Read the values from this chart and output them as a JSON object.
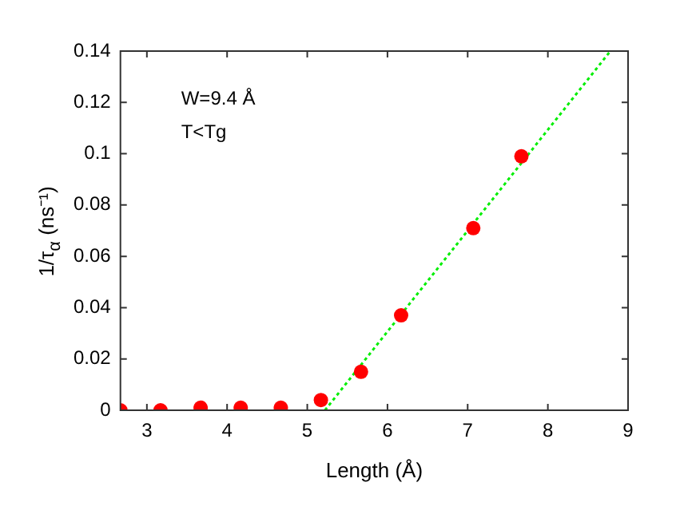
{
  "chart_data": {
    "type": "scatter",
    "xlabel": "Length (Å)",
    "ylabel": "1/τ$_{α}$ (ns⁻¹)",
    "xlim": [
      2.67,
      9
    ],
    "xticks": [
      3,
      4,
      5,
      6,
      7,
      8,
      9
    ],
    "ylim": [
      0,
      0.14
    ],
    "yticks": [
      0,
      0.02,
      0.04,
      0.06,
      0.08,
      0.1,
      0.12,
      0.14
    ],
    "grid": false,
    "legend": false,
    "marker": "circle",
    "annotations": [
      "W=9.4 Å",
      "T<Tg"
    ],
    "series": [
      {
        "color": "#ff0000",
        "x": [
          2.67,
          3.17,
          3.67,
          4.17,
          4.67,
          5.17,
          5.67,
          6.17,
          7.07,
          7.67
        ],
        "values": [
          0,
          0,
          0.001,
          0.001,
          0.001,
          0.004,
          0.015,
          0.037,
          0.071,
          0.099
        ]
      },
      {
        "type": "line",
        "color": "#00ee00",
        "line_style": "dotted",
        "marker": "none",
        "x": [
          5.22,
          8.78
        ],
        "values": [
          0,
          0.14
        ]
      }
    ]
  }
}
